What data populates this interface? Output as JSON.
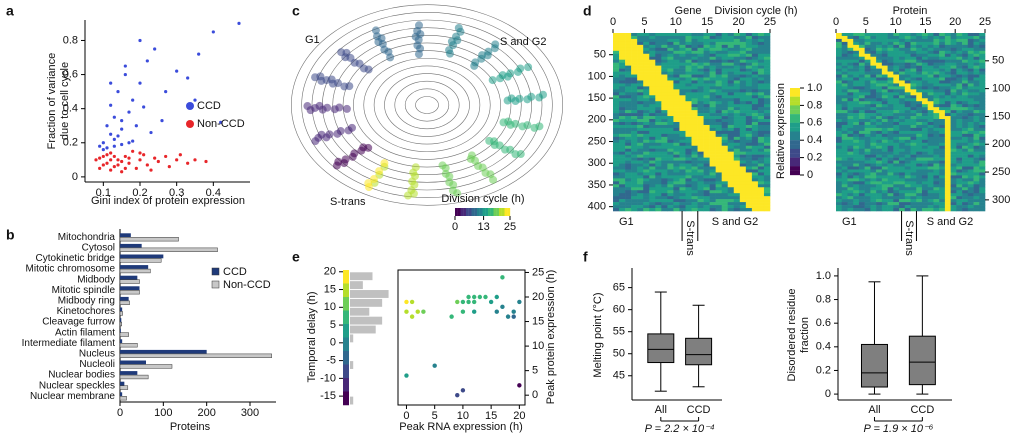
{
  "chart_data": [
    {
      "panel": "a",
      "type": "scatter",
      "xlabel": "Gini index of protein expression",
      "ylabel": [
        "Fraction of variance",
        "due to cell cycle"
      ],
      "xlim": [
        0.05,
        0.5
      ],
      "xticks": [
        0.1,
        0.2,
        0.3,
        0.4
      ],
      "ylim": [
        -0.03,
        0.92
      ],
      "yticks": [
        0,
        0.2,
        0.4,
        0.6,
        0.8
      ],
      "legend": "center-right",
      "series": [
        {
          "name": "CCD",
          "color": "#3b4cdb",
          "x": [
            0.1,
            0.11,
            0.12,
            0.13,
            0.12,
            0.14,
            0.15,
            0.13,
            0.16,
            0.18,
            0.17,
            0.2,
            0.22,
            0.24,
            0.19,
            0.15,
            0.11,
            0.14,
            0.21,
            0.26,
            0.3,
            0.33,
            0.36,
            0.42,
            0.47,
            0.4,
            0.16,
            0.12,
            0.1,
            0.18,
            0.23,
            0.27,
            0.13,
            0.15,
            0.09,
            0.2,
            0.35,
            0.17
          ],
          "values": [
            0.2,
            0.3,
            0.25,
            0.35,
            0.42,
            0.5,
            0.28,
            0.22,
            0.6,
            0.45,
            0.38,
            0.55,
            0.68,
            0.75,
            0.3,
            0.19,
            0.17,
            0.24,
            0.41,
            0.33,
            0.62,
            0.58,
            0.72,
            0.32,
            0.9,
            0.85,
            0.65,
            0.55,
            0.16,
            0.21,
            0.26,
            0.5,
            0.18,
            0.33,
            0.18,
            0.8,
            0.45,
            0.2
          ]
        },
        {
          "name": "Non-CCD",
          "color": "#e8262a",
          "x": [
            0.08,
            0.09,
            0.1,
            0.11,
            0.12,
            0.13,
            0.14,
            0.15,
            0.16,
            0.17,
            0.18,
            0.19,
            0.2,
            0.21,
            0.22,
            0.24,
            0.25,
            0.27,
            0.3,
            0.33,
            0.35,
            0.38,
            0.1,
            0.12,
            0.13,
            0.11,
            0.15,
            0.14,
            0.16,
            0.09,
            0.12,
            0.17,
            0.2,
            0.23,
            0.28,
            0.31
          ],
          "values": [
            0.1,
            0.05,
            0.12,
            0.08,
            0.14,
            0.06,
            0.1,
            0.03,
            0.12,
            0.08,
            0.15,
            0.05,
            0.1,
            0.13,
            0.07,
            0.11,
            0.09,
            0.12,
            0.1,
            0.08,
            0.1,
            0.09,
            0.07,
            0.1,
            0.12,
            0.13,
            0.09,
            0.07,
            0.05,
            0.11,
            0.04,
            0.11,
            0.14,
            0.04,
            0.06,
            0.13
          ]
        }
      ]
    },
    {
      "panel": "b",
      "type": "bar",
      "orientation": "horizontal",
      "xlabel": "Proteins",
      "xlim": [
        0,
        360
      ],
      "xticks": [
        0,
        100,
        200,
        300
      ],
      "legend": "center-right",
      "categories": [
        "Mitochondria",
        "Cytosol",
        "Cytokinetic bridge",
        "Mitotic chromosome",
        "Midbody",
        "Mitotic spindle",
        "Midbody ring",
        "Kinetochores",
        "Cleavage furrow",
        "Actin filament",
        "Intermediate filament",
        "Nucleus",
        "Nucleoli",
        "Nuclear bodies",
        "Nuclear speckles",
        "Nuclear membrane"
      ],
      "series": [
        {
          "name": "CCD",
          "color": "#1f3a7a",
          "values": [
            25,
            50,
            100,
            65,
            40,
            45,
            20,
            5,
            3,
            2,
            5,
            200,
            60,
            40,
            10,
            5
          ]
        },
        {
          "name": "Non-CCD",
          "color": "#c8c8c8",
          "values": [
            135,
            225,
            95,
            70,
            45,
            45,
            22,
            6,
            4,
            20,
            40,
            350,
            120,
            65,
            18,
            15
          ]
        }
      ]
    },
    {
      "panel": "c",
      "type": "stream",
      "labels": [
        "G1",
        "S and G2",
        "S-trans"
      ],
      "colorbar_label": "Division cycle (h)",
      "colormap": "viridis",
      "clim": [
        0,
        25
      ],
      "cticks": [
        0,
        13,
        25
      ]
    },
    {
      "panel": "d",
      "type": "heatmap",
      "title": "Gene",
      "xlabel": "Division cycle (h)",
      "xlim": [
        0,
        25
      ],
      "xticks": [
        0,
        5,
        10,
        15,
        20,
        25
      ],
      "ylim": [
        0,
        410
      ],
      "yticks": [
        50,
        100,
        150,
        200,
        250,
        300,
        350,
        400
      ],
      "phases": [
        "G1",
        "S-trans",
        "S and G2"
      ],
      "colormap": "viridis",
      "colorbar_label": "Relative expression",
      "clim": [
        0,
        1
      ],
      "cticks": [
        0,
        0.2,
        0.4,
        0.6,
        0.8,
        {
          "value": 1,
          "label": "1.0"
        }
      ]
    },
    {
      "type": "heatmap",
      "title": "Protein",
      "xlim": [
        0,
        25
      ],
      "xticks": [
        0,
        5,
        10,
        15,
        20,
        25
      ],
      "ylim": [
        0,
        320
      ],
      "yticks": [
        50,
        100,
        150,
        200,
        250,
        300
      ],
      "phases": [
        "G1",
        "S-trans",
        "S and G2"
      ],
      "colormap": "viridis"
    },
    {
      "panel": "e",
      "type": "histogram",
      "orientation": "horizontal",
      "ylabel": "Temporal delay (h)",
      "ylim": [
        -17.5,
        20.5
      ],
      "yticks": [
        -15,
        -10,
        -5,
        0,
        5,
        10,
        15,
        20
      ],
      "xlim": [
        0,
        14
      ],
      "color": "#c0c0c0",
      "colormap": "viridis",
      "bins": [
        -17.5,
        -15,
        -12.5,
        -10,
        -7.5,
        -5,
        -2.5,
        0,
        2.5,
        5,
        7.5,
        10,
        12.5,
        15,
        17.5,
        20
      ],
      "values": [
        1,
        0,
        0,
        0,
        1,
        0,
        0,
        1,
        8,
        10,
        6,
        10,
        12,
        4,
        7
      ]
    },
    {
      "type": "scatter",
      "xlabel": "Peak RNA expression (h)",
      "ylabel": "Peak protein expression (h)",
      "xlim": [
        -1.5,
        21
      ],
      "xticks": [
        0,
        5,
        10,
        15,
        20
      ],
      "y2lim": [
        -2,
        25.5
      ],
      "y2ticks": [
        0,
        5,
        10,
        15,
        20,
        25
      ],
      "colormap": "viridis",
      "clim": [
        -17.5,
        20.5
      ],
      "x": [
        0,
        0,
        1,
        2,
        3,
        1,
        0,
        5,
        9,
        10,
        8,
        9,
        10,
        11,
        11,
        12,
        12,
        13,
        14,
        15,
        16,
        16,
        17,
        17,
        18,
        19,
        19,
        20,
        20,
        10,
        12
      ],
      "values": [
        17,
        19,
        19,
        17,
        17,
        16,
        4,
        6,
        0,
        1,
        16,
        19,
        19,
        20,
        19,
        20,
        19,
        20,
        20,
        19,
        17,
        20,
        18,
        24,
        16,
        17,
        16,
        19,
        2,
        17,
        17
      ]
    },
    {
      "panel": "f",
      "type": "box",
      "ylabel": [
        "Melting point (°C)"
      ],
      "ylim": [
        39.5,
        69
      ],
      "yticks": [
        45,
        50,
        55,
        60,
        65
      ],
      "color": "#7f7f7f",
      "categories": [
        "All",
        "CCD"
      ],
      "boxes": [
        {
          "whislo": 41.5,
          "q1": 48,
          "med": 51,
          "q3": 54.5,
          "whishi": 64
        },
        {
          "whislo": 42.5,
          "q1": 47.5,
          "med": 49.8,
          "q3": 53.5,
          "whishi": 61
        }
      ],
      "annotation": "P = 2.2 × 10⁻⁴"
    },
    {
      "type": "box",
      "ylabel": [
        "Disordered residue",
        "fraction"
      ],
      "ylim": [
        -0.05,
        1.05
      ],
      "yticks": [
        0,
        0.2,
        0.4,
        0.6,
        0.8,
        {
          "value": 1,
          "label": "1.0"
        }
      ],
      "color": "#7f7f7f",
      "categories": [
        "All",
        "CCD"
      ],
      "boxes": [
        {
          "whislo": 0,
          "q1": 0.06,
          "med": 0.18,
          "q3": 0.42,
          "whishi": 0.95
        },
        {
          "whislo": 0,
          "q1": 0.08,
          "med": 0.27,
          "q3": 0.49,
          "whishi": 1
        }
      ],
      "annotation": "P = 1.9 × 10⁻⁶"
    }
  ]
}
